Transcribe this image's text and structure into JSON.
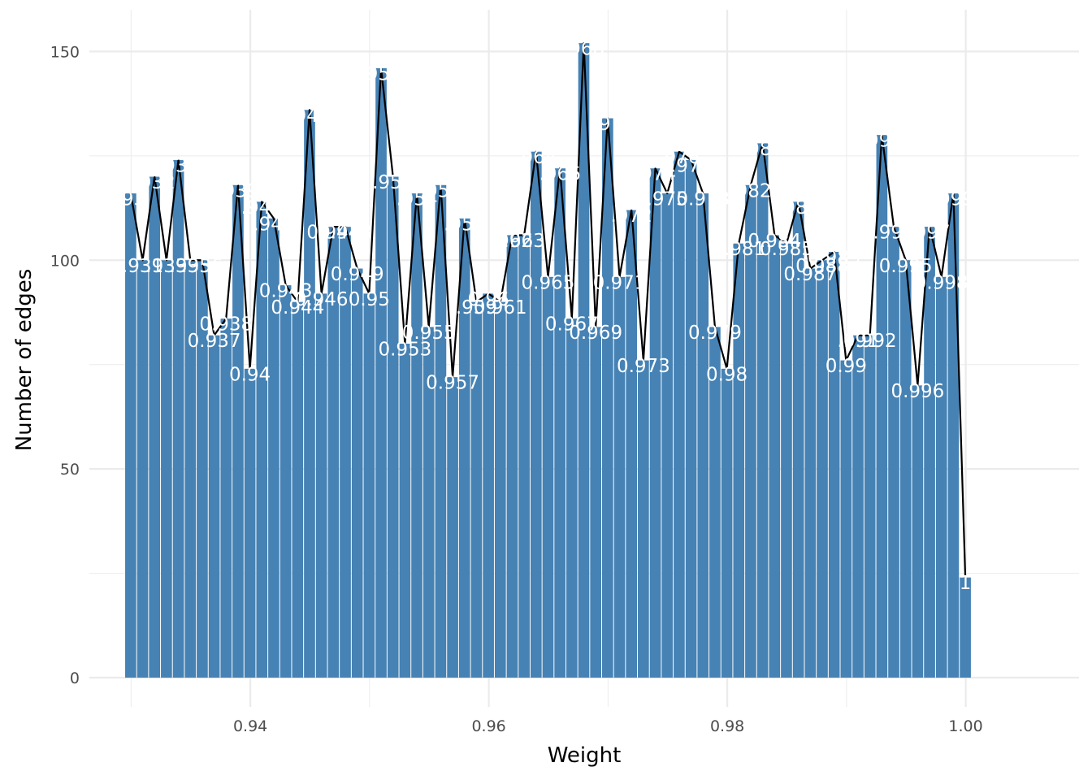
{
  "chart_data": {
    "type": "bar",
    "title": "",
    "xlabel": "Weight",
    "ylabel": "Number of edges",
    "xlim": [
      0.9265,
      1.0095
    ],
    "ylim": [
      -7,
      160
    ],
    "x_ticks": [
      0.94,
      0.96,
      0.98,
      1.0
    ],
    "x_tick_labels": [
      "0.94",
      "0.96",
      "0.98",
      "1.00"
    ],
    "y_ticks": [
      0,
      50,
      100,
      150
    ],
    "y_tick_labels": [
      "0",
      "50",
      "100",
      "150"
    ],
    "grid": true,
    "legend": "none",
    "bin_width": 0.001,
    "x": [
      0.93,
      0.931,
      0.932,
      0.933,
      0.934,
      0.935,
      0.936,
      0.937,
      0.938,
      0.939,
      0.94,
      0.941,
      0.942,
      0.943,
      0.944,
      0.945,
      0.946,
      0.947,
      0.948,
      0.949,
      0.95,
      0.951,
      0.952,
      0.953,
      0.954,
      0.955,
      0.956,
      0.957,
      0.958,
      0.959,
      0.96,
      0.961,
      0.962,
      0.963,
      0.964,
      0.965,
      0.966,
      0.967,
      0.968,
      0.969,
      0.97,
      0.971,
      0.972,
      0.973,
      0.974,
      0.975,
      0.976,
      0.977,
      0.978,
      0.979,
      0.98,
      0.981,
      0.982,
      0.983,
      0.984,
      0.985,
      0.986,
      0.987,
      0.988,
      0.989,
      0.99,
      0.991,
      0.992,
      0.993,
      0.994,
      0.995,
      0.996,
      0.997,
      0.998,
      0.999,
      1.0
    ],
    "values": [
      116,
      100,
      120,
      100,
      124,
      100,
      100,
      82,
      86,
      118,
      74,
      114,
      110,
      94,
      90,
      136,
      92,
      108,
      108,
      98,
      92,
      146,
      120,
      80,
      116,
      84,
      118,
      72,
      110,
      90,
      92,
      90,
      106,
      106,
      126,
      96,
      122,
      86,
      152,
      84,
      134,
      96,
      112,
      76,
      122,
      116,
      126,
      124,
      116,
      84,
      74,
      104,
      118,
      128,
      106,
      104,
      114,
      98,
      100,
      102,
      76,
      82,
      82,
      130,
      108,
      100,
      70,
      108,
      96,
      116,
      24
    ],
    "bar_labels": [
      ".93",
      ".931",
      ".932",
      ".933",
      ".934",
      ".935",
      ".936",
      "0.937",
      "0.938",
      ".939",
      "0.94",
      ".941",
      ".942",
      "0.943",
      "0.944",
      ".945",
      "0.946",
      "0.947",
      "0.948",
      "0.949",
      "0.95",
      ".951",
      ".952",
      "0.953",
      ".954",
      "0.955",
      ".956",
      "0.957",
      ".958",
      ".959",
      "0.96",
      "0.961",
      ".962",
      ".963",
      ".964",
      "0.965",
      ".966",
      "0.967",
      ".968",
      "0.969",
      ".97",
      "0.971",
      ".972",
      "0.973",
      ".974",
      ".975",
      ".976",
      ".977",
      "0.978",
      "0.979",
      "0.98",
      "0.981",
      ".982",
      ".983",
      "0.984",
      "0.985",
      ".986",
      "0.987",
      "0.988",
      "0.989",
      "0.99",
      ".991",
      "0.992",
      ".993",
      ".994",
      "0.995",
      "0.996",
      ".997",
      "0.998",
      ".999",
      "1"
    ],
    "colors": {
      "bar": "#4682B4",
      "bar_label": "#FFFFFF",
      "line": "#000000",
      "grid": "#EBEBEB",
      "tick_label": "#4D4D4D",
      "axis_title": "#000000",
      "background": "#FFFFFF"
    }
  }
}
